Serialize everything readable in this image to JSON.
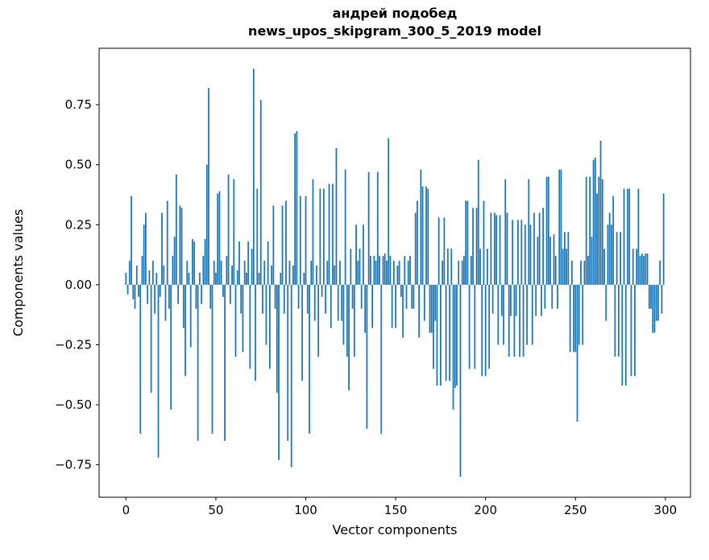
{
  "figure": {
    "title_line1": "андрей подобед",
    "title_line2": "news_upos_skipgram_300_5_2019 model",
    "xlabel": "Vector components",
    "ylabel": "Components values"
  },
  "chart_data": {
    "type": "bar",
    "title": "андрей подобед\nnews_upos_skipgram_300_5_2019 model",
    "xlabel": "Vector components",
    "ylabel": "Components values",
    "bar_color": "#1f77b4",
    "grid": false,
    "legend": "none",
    "x_start": 0,
    "xticks": [
      0,
      50,
      100,
      150,
      200,
      250,
      300
    ],
    "yticks": [
      -0.75,
      -0.5,
      -0.25,
      0.0,
      0.25,
      0.5,
      0.75
    ],
    "xlim": [
      -14.95,
      313.95
    ],
    "ylim": [
      -0.885,
      0.985
    ],
    "values": [
      0.05,
      -0.04,
      0.1,
      0.37,
      -0.06,
      -0.1,
      0.08,
      -0.05,
      -0.62,
      0.12,
      0.25,
      0.3,
      -0.08,
      0.06,
      -0.45,
      0.1,
      -0.12,
      0.05,
      -0.72,
      -0.05,
      0.3,
      0.08,
      -0.15,
      0.35,
      -0.1,
      -0.52,
      0.12,
      0.2,
      0.46,
      -0.08,
      0.33,
      0.32,
      -0.18,
      -0.38,
      0.1,
      0.05,
      -0.26,
      0.19,
      0.18,
      -0.1,
      -0.65,
      0.05,
      -0.08,
      0.12,
      0.19,
      0.5,
      0.82,
      -0.1,
      -0.62,
      0.1,
      0.05,
      0.38,
      0.39,
      0.1,
      -0.05,
      -0.65,
      0.12,
      0.46,
      -0.08,
      0.08,
      0.44,
      -0.3,
      0.06,
      0.18,
      -0.12,
      -0.28,
      0.1,
      0.05,
      0.18,
      -0.35,
      0.15,
      0.9,
      -0.4,
      0.4,
      0.05,
      0.77,
      -0.12,
      0.1,
      -0.25,
      0.18,
      -0.35,
      0.08,
      0.33,
      -0.1,
      -0.45,
      -0.73,
      0.05,
      0.33,
      -0.12,
      0.35,
      -0.65,
      0.1,
      -0.76,
      0.08,
      0.63,
      0.64,
      -0.1,
      0.37,
      -0.4,
      0.05,
      0.37,
      -0.12,
      -0.62,
      0.1,
      0.44,
      -0.15,
      0.08,
      -0.3,
      0.4,
      -0.05,
      0.4,
      -0.12,
      0.1,
      0.42,
      -0.18,
      0.42,
      0.08,
      0.57,
      -0.15,
      0.1,
      -0.15,
      -0.25,
      0.48,
      -0.3,
      -0.44,
      0.15,
      -0.1,
      -0.3,
      0.25,
      0.1,
      0.15,
      -0.1,
      0.25,
      -0.2,
      -0.6,
      0.47,
      0.12,
      -0.18,
      0.12,
      0.1,
      0.47,
      0.12,
      -0.62,
      0.12,
      0.13,
      0.1,
      0.61,
      0.12,
      -0.18,
      0.1,
      -0.18,
      0.08,
      0.1,
      -0.05,
      -0.22,
      0.12,
      -0.1,
      0.1,
      0.12,
      -0.1,
      -0.1,
      0.3,
      0.35,
      -0.22,
      0.48,
      0.41,
      -0.15,
      0.41,
      0.4,
      -0.2,
      -0.2,
      -0.35,
      -0.15,
      -0.42,
      0.28,
      -0.42,
      0.1,
      0.28,
      -0.4,
      0.15,
      -0.4,
      0.15,
      -0.52,
      -0.43,
      -0.42,
      0.1,
      -0.8,
      0.1,
      0.12,
      0.35,
      0.35,
      -0.35,
      0.12,
      0.32,
      -0.35,
      0.32,
      0.52,
      0.15,
      -0.38,
      0.35,
      -0.38,
      0.15,
      -0.35,
      0.3,
      -0.12,
      0.3,
      0.29,
      -0.25,
      0.29,
      -0.13,
      -0.25,
      0.44,
      0.3,
      -0.3,
      -0.13,
      0.27,
      -0.3,
      -0.13,
      0.27,
      -0.3,
      0.27,
      -0.3,
      0.25,
      -0.25,
      0.44,
      0.25,
      -0.25,
      0.3,
      -0.13,
      0.2,
      0.3,
      -0.13,
      0.32,
      -0.1,
      0.45,
      0.45,
      0.2,
      -0.1,
      0.21,
      0.12,
      -0.1,
      0.48,
      0.48,
      0.15,
      0.22,
      0.15,
      0.22,
      -0.28,
      0.1,
      -0.28,
      -0.28,
      -0.57,
      -0.25,
      0.1,
      -0.25,
      0.1,
      0.45,
      0.12,
      0.45,
      0.2,
      0.52,
      0.53,
      0.38,
      0.45,
      0.6,
      0.44,
      0.15,
      -0.15,
      0.25,
      0.3,
      0.25,
      0.37,
      -0.3,
      0.22,
      -0.3,
      0.22,
      -0.42,
      0.4,
      -0.42,
      0.4,
      0.4,
      -0.38,
      0.15,
      -0.38,
      0.15,
      0.4,
      0.12,
      0.13,
      0.12,
      0.13,
      0.13,
      -0.1,
      -0.1,
      -0.2,
      -0.2,
      -0.15,
      -0.15,
      0.1,
      -0.12,
      0.38
    ]
  }
}
